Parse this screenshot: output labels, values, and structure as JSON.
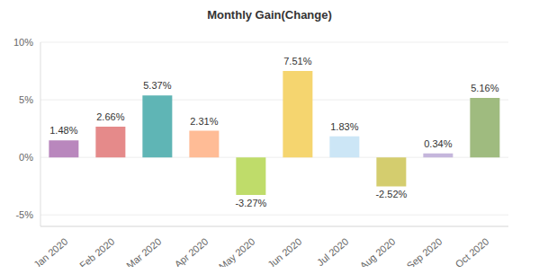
{
  "chart_data": {
    "type": "bar",
    "title": "Monthly Gain(Change)",
    "categories": [
      "Jan 2020",
      "Feb 2020",
      "Mar 2020",
      "Apr 2020",
      "May 2020",
      "Jun 2020",
      "Jul 2020",
      "Aug 2020",
      "Sep 2020",
      "Oct 2020"
    ],
    "values": [
      1.48,
      2.66,
      5.37,
      2.31,
      -3.27,
      7.51,
      1.83,
      -2.52,
      0.34,
      5.16
    ],
    "value_labels": [
      "1.48%",
      "2.66%",
      "5.37%",
      "2.31%",
      "-3.27%",
      "7.51%",
      "1.83%",
      "-2.52%",
      "0.34%",
      "5.16%"
    ],
    "colors": [
      "#b987bd",
      "#e58a8a",
      "#5fb5b5",
      "#ffbc96",
      "#bfdc6a",
      "#f5d56f",
      "#cce6f6",
      "#d4cd6e",
      "#c5b6dc",
      "#9fbb7f"
    ],
    "ylim": [
      -6,
      10
    ],
    "yticks": [
      {
        "value": -5,
        "label": "-5%"
      },
      {
        "value": 0,
        "label": "0%"
      },
      {
        "value": 5,
        "label": "5%"
      },
      {
        "value": 10,
        "label": "10%"
      }
    ],
    "grid": true,
    "data_labels": true
  }
}
